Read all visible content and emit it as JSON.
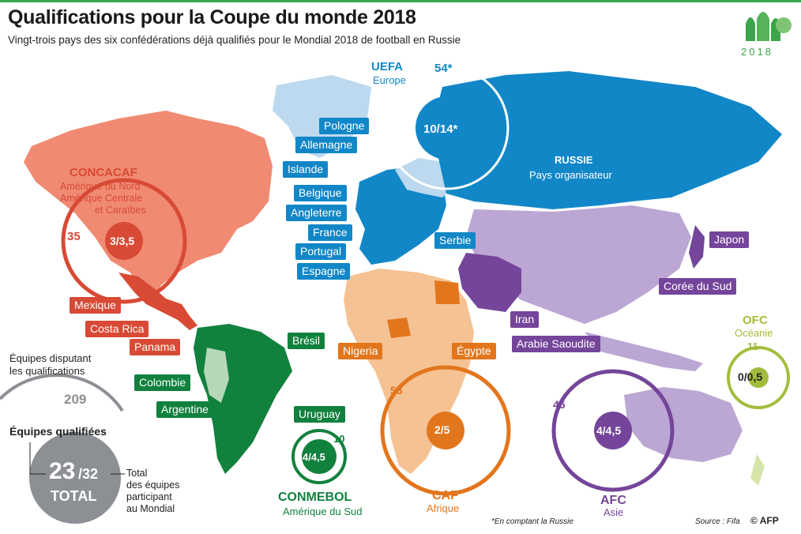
{
  "header": {
    "title": "Qualifications pour la Coupe du monde 2018",
    "subtitle": "Vingt-trois pays des six confédérations déjà qualifiés pour le Mondial 2018 de football en Russie",
    "logo_year": "2018",
    "watermark": "AFP"
  },
  "colors": {
    "uefa": "#1287c7",
    "concacaf": "#d84a35",
    "conmebol": "#11813e",
    "caf": "#e2761d",
    "afc": "#74459a",
    "ofc": "#a2bd3e",
    "total": "#8c8f94"
  },
  "confederations": {
    "uefa": {
      "name": "UEFA",
      "region": "Europe",
      "entered": "54*",
      "ratio": "10/14*"
    },
    "concacaf": {
      "name": "CONCACAF",
      "region_lines": [
        "Amérique du Nord",
        "Amérique Centrale",
        "et Caraïbes"
      ],
      "entered": "35",
      "ratio": "3/3,5"
    },
    "conmebol": {
      "name": "CONMEBOL",
      "region": "Amérique du Sud",
      "entered": "10",
      "ratio": "4/4,5"
    },
    "caf": {
      "name": "CAF",
      "region": "Afrique",
      "entered": "53",
      "ratio": "2/5"
    },
    "afc": {
      "name": "AFC",
      "region": "Asie",
      "entered": "46",
      "ratio": "4/4,5"
    },
    "ofc": {
      "name": "OFC",
      "region": "Océanie",
      "entered": "11",
      "ratio": "0/0,5"
    }
  },
  "host": {
    "name": "RUSSIE",
    "note": "Pays organisateur"
  },
  "countries": {
    "uefa": [
      "Pologne",
      "Allemagne",
      "Islande",
      "Belgique",
      "Angleterre",
      "France",
      "Portugal",
      "Espagne",
      "Serbie"
    ],
    "concacaf": [
      "Mexique",
      "Costa Rica",
      "Panama"
    ],
    "conmebol": [
      "Brésil",
      "Colombie",
      "Argentine",
      "Uruguay"
    ],
    "caf": [
      "Nigeria",
      "Égypte"
    ],
    "afc": [
      "Japon",
      "Corée du Sud",
      "Iran",
      "Arabie Saoudite"
    ]
  },
  "summary": {
    "teams_label_1": "Équipes disputant",
    "teams_label_2": "les qualifications",
    "teams_count": "209",
    "qualified_label": "Équipes qualifiées",
    "qualified": "23",
    "total_slots": "/32",
    "total_word": "TOTAL",
    "total_desc": [
      "Total",
      "des équipes",
      "participant",
      "au Mondial"
    ]
  },
  "footer": {
    "note": "*En comptant la Russie",
    "source": "Source : Fifa",
    "credit": "© AFP"
  }
}
